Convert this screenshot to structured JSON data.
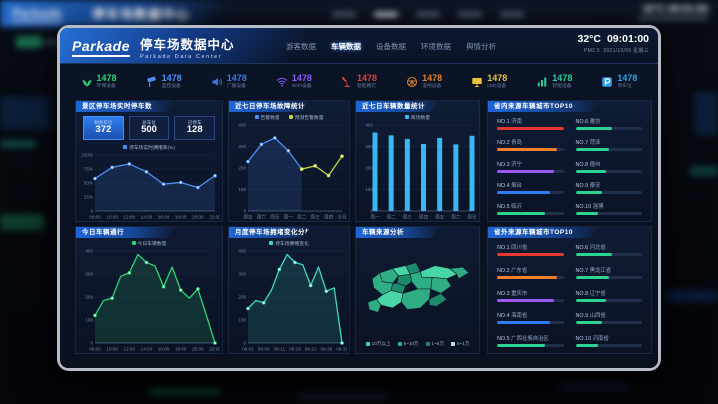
{
  "backdrop": {
    "brand": "Parkade",
    "title": "停车场数据中心",
    "temp": "32°C",
    "time": "09:01:00"
  },
  "screen": {
    "brand": "Parkade",
    "title": "停车场数据中心",
    "subtitle": "Parkade Data Center",
    "temp": "32°C",
    "time": "09:01:00",
    "pm": "PM2.5",
    "date": "2021/10/06 星期三",
    "nav": {
      "items": [
        {
          "label": "游客数据",
          "active": false
        },
        {
          "label": "车辆数据",
          "active": true
        },
        {
          "label": "设备数据",
          "active": false
        },
        {
          "label": "环境数据",
          "active": false
        },
        {
          "label": "舆情分析",
          "active": false
        }
      ]
    },
    "stats": {
      "items": [
        {
          "icon": "leaf-icon",
          "value": "1478",
          "label": "环保设备",
          "color": "#2ed573"
        },
        {
          "icon": "camera-icon",
          "value": "1478",
          "label": "监控设备",
          "color": "#4f8ef7"
        },
        {
          "icon": "speaker-icon",
          "value": "1478",
          "label": "广播设备",
          "color": "#3f74e8"
        },
        {
          "icon": "wifi-icon",
          "value": "1478",
          "label": "WIFI设备",
          "color": "#8b5cf6"
        },
        {
          "icon": "lamp-icon",
          "value": "1478",
          "label": "智能路灯",
          "color": "#e23c3c"
        },
        {
          "icon": "steering-icon",
          "value": "1478",
          "label": "道闸设备",
          "color": "#e0822e"
        },
        {
          "icon": "led-icon",
          "value": "1478",
          "label": "LED设备",
          "color": "#e8c23a"
        },
        {
          "icon": "signal-icon",
          "value": "1478",
          "label": "智能设备",
          "color": "#2ecf9a"
        },
        {
          "icon": "parking-icon",
          "value": "1478",
          "label": "停车位",
          "color": "#35a0e8"
        }
      ]
    }
  },
  "panels": {
    "p1": {
      "title": "景区停车场实时停车数",
      "boxes": [
        {
          "label": "剩余车位",
          "value": "372"
        },
        {
          "label": "总车位",
          "value": "500"
        },
        {
          "label": "已停车",
          "value": "128"
        }
      ]
    },
    "p2": {
      "title": "近七日停车场故障统计"
    },
    "p3": {
      "title": "近七日车辆数量统计"
    },
    "p4": {
      "title": "省内来源车辆城市TOP10"
    },
    "p5": {
      "title": "今日车辆通行"
    },
    "p6": {
      "title": "月度停车场拥堵变化分析"
    },
    "p7": {
      "title": "车辆来源分析"
    },
    "p8": {
      "title": "省外来源车辆城市TOP10"
    }
  },
  "top10_in": {
    "items": [
      {
        "rank": "NO.1",
        "name": "济南",
        "pct": 100,
        "color": "#e5382f"
      },
      {
        "rank": "NO.2",
        "name": "青岛",
        "pct": 90,
        "color": "#f5802b"
      },
      {
        "rank": "NO.3",
        "name": "济宁",
        "pct": 85,
        "color": "#9b5cf6"
      },
      {
        "rank": "NO.4",
        "name": "烟台",
        "pct": 80,
        "color": "#2e7bf6"
      },
      {
        "rank": "NO.5",
        "name": "临沂",
        "pct": 72,
        "color": "#2bd491"
      },
      {
        "rank": "NO.6",
        "name": "潍坊",
        "pct": 55,
        "color": "#2bd491"
      },
      {
        "rank": "NO.7",
        "name": "菏泽",
        "pct": 50,
        "color": "#2bd491"
      },
      {
        "rank": "NO.8",
        "name": "德州",
        "pct": 46,
        "color": "#2bd491"
      },
      {
        "rank": "NO.9",
        "name": "泰安",
        "pct": 40,
        "color": "#2bd491"
      },
      {
        "rank": "NO.10",
        "name": "淄博",
        "pct": 34,
        "color": "#2bd491"
      }
    ]
  },
  "top10_out": {
    "items": [
      {
        "rank": "NO.1",
        "name": "四川省",
        "pct": 100,
        "color": "#e5382f"
      },
      {
        "rank": "NO.2",
        "name": "广东省",
        "pct": 90,
        "color": "#f5802b"
      },
      {
        "rank": "NO.3",
        "name": "重庆市",
        "pct": 85,
        "color": "#9b5cf6"
      },
      {
        "rank": "NO.4",
        "name": "海南省",
        "pct": 80,
        "color": "#2e7bf6"
      },
      {
        "rank": "NO.5",
        "name": "广西壮族自治区",
        "pct": 72,
        "color": "#2bd491"
      },
      {
        "rank": "NO.6",
        "name": "河北省",
        "pct": 55,
        "color": "#2bd491"
      },
      {
        "rank": "NO.7",
        "name": "黑龙江省",
        "pct": 50,
        "color": "#2bd491"
      },
      {
        "rank": "NO.8",
        "name": "辽宁省",
        "pct": 46,
        "color": "#2bd491"
      },
      {
        "rank": "NO.9",
        "name": "山西省",
        "pct": 40,
        "color": "#2bd491"
      },
      {
        "rank": "NO.10",
        "name": "河南省",
        "pct": 34,
        "color": "#2bd491"
      }
    ]
  },
  "chart_data": [
    {
      "type": "line",
      "title": "景区停车场实时停车数",
      "x_labels": [
        "08:00",
        "10:00",
        "12:00",
        "14:00",
        "16:00",
        "18:00",
        "20:00",
        "22:00"
      ],
      "y_ticks": [
        100,
        75,
        50,
        25,
        0
      ],
      "y_suffix": "%",
      "ylim": [
        0,
        100
      ],
      "grid": true,
      "legend_position": "top",
      "series": [
        {
          "name": "停车场实时拥堵率(%)",
          "color": "#4f8ef7",
          "area": true,
          "values": [
            58,
            78,
            84,
            70,
            48,
            51,
            42,
            63
          ]
        }
      ]
    },
    {
      "type": "line",
      "title": "近七日停车场故障统计",
      "x_labels": [
        "周五",
        "周六",
        "周日",
        "周一",
        "周二",
        "周三",
        "周四",
        "今日"
      ],
      "y_ticks": [
        400,
        300,
        200,
        100,
        0
      ],
      "ylim": [
        0,
        400
      ],
      "grid": true,
      "legend_position": "top",
      "series": [
        {
          "name": "告警数量",
          "color": "#4f8ef7",
          "area": true,
          "values": [
            230,
            310,
            340,
            280,
            195
          ]
        },
        {
          "name": "预测告警数量",
          "color": "#c8d838",
          "start_index": 4,
          "values": [
            195,
            210,
            165,
            255
          ]
        }
      ]
    },
    {
      "type": "bar",
      "title": "近七日车辆数量统计",
      "x_labels": [
        "周一",
        "周二",
        "周三",
        "周四",
        "周五",
        "周六",
        "周日"
      ],
      "y_ticks": [
        400,
        300,
        200,
        100,
        0
      ],
      "ylim": [
        0,
        400
      ],
      "grid": true,
      "legend_position": "top",
      "series": [
        {
          "name": "离场数量",
          "color": "#38b7f2",
          "values": [
            365,
            352,
            335,
            312,
            340,
            310,
            350
          ]
        }
      ]
    },
    {
      "type": "area",
      "title": "今日车辆通行",
      "points_per_label": 2,
      "x_labels": [
        "08:00",
        "10:00",
        "12:00",
        "14:00",
        "16:00",
        "18:00",
        "20:00",
        "22:00"
      ],
      "y_ticks": [
        400,
        300,
        200,
        100,
        0
      ],
      "ylim": [
        0,
        400
      ],
      "grid": true,
      "legend_position": "top",
      "series": [
        {
          "name": "今日车辆数量",
          "color": "#2ed573",
          "area": true,
          "dot_every": 2,
          "values": [
            120,
            185,
            195,
            290,
            305,
            385,
            350,
            335,
            245,
            330,
            230,
            195,
            235,
            120,
            0
          ]
        }
      ]
    },
    {
      "type": "area",
      "title": "月度停车场拥堵变化分析",
      "points_per_label": 2,
      "x_labels": [
        "08-01",
        "08-06",
        "08-11",
        "08-16",
        "08-21",
        "08-26",
        "08-31"
      ],
      "y_ticks": [
        400,
        300,
        200,
        100,
        0
      ],
      "ylim": [
        0,
        400
      ],
      "grid": true,
      "legend_position": "top",
      "series": [
        {
          "name": "停车场拥堵变化",
          "color": "#3fd9c0",
          "area": true,
          "dot_every": 2,
          "values": [
            150,
            185,
            175,
            230,
            320,
            385,
            350,
            340,
            250,
            330,
            225,
            240,
            0
          ]
        }
      ]
    },
    {
      "type": "heatmap",
      "title": "车辆来源分析",
      "legend": [
        {
          "label": "10万以上",
          "color": "#49d6a6"
        },
        {
          "label": "5~10万",
          "color": "#2fae85"
        },
        {
          "label": "1~5万",
          "color": "#1e8a6c"
        },
        {
          "label": "0~1万",
          "color": "#bde8d9"
        }
      ]
    }
  ]
}
